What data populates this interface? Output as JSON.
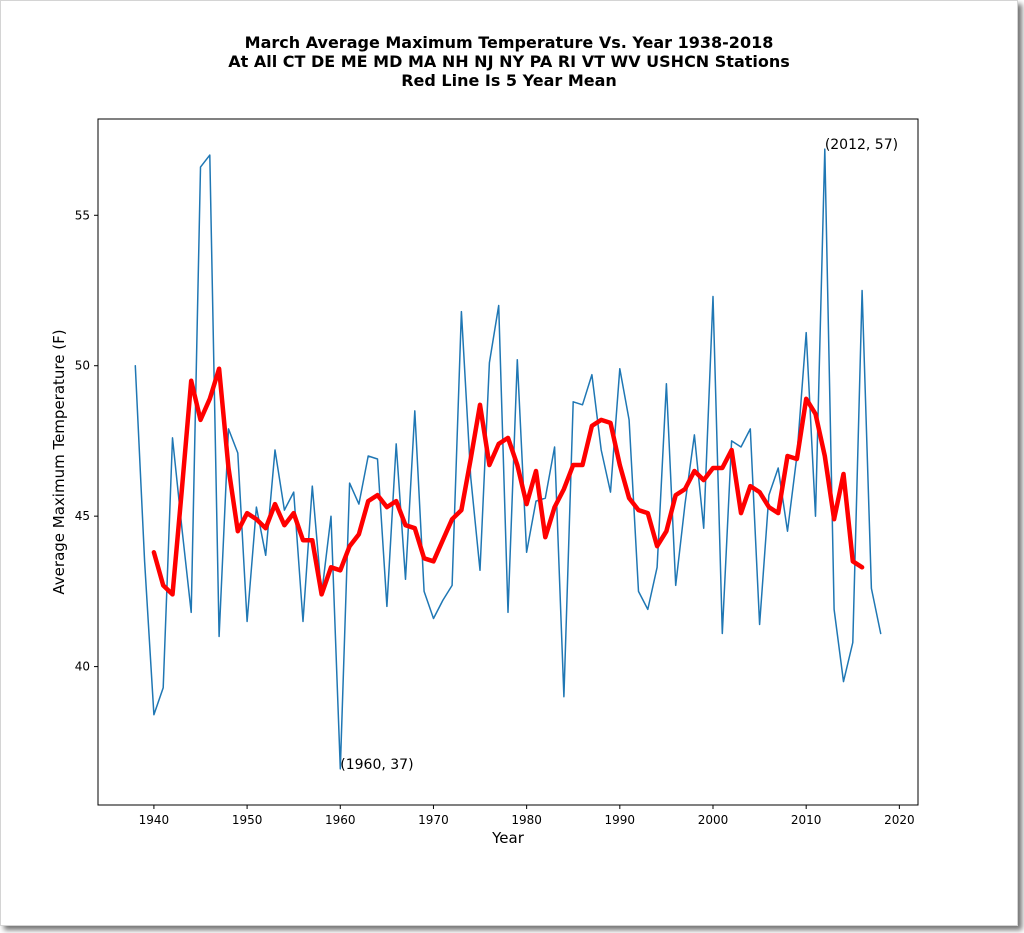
{
  "chart_data": {
    "type": "line",
    "title": [
      "March Average Maximum Temperature Vs. Year 1938-2018",
      "At All CT DE ME MD MA NH NJ NY PA RI VT WV USHCN Stations",
      "Red Line Is 5 Year Mean"
    ],
    "xlabel": "Year",
    "ylabel": "Average Maximum Temperature (F)",
    "xlim": [
      1934,
      2022
    ],
    "ylim": [
      35.4,
      58.2
    ],
    "xticks": [
      1940,
      1950,
      1960,
      1970,
      1980,
      1990,
      2000,
      2010,
      2020
    ],
    "yticks": [
      40,
      45,
      50,
      55
    ],
    "grid": false,
    "series": [
      {
        "color": "#1f77b4",
        "x": [
          1938,
          1939,
          1940,
          1941,
          1942,
          1943,
          1944,
          1945,
          1946,
          1947,
          1948,
          1949,
          1950,
          1951,
          1952,
          1953,
          1954,
          1955,
          1956,
          1957,
          1958,
          1959,
          1960,
          1961,
          1962,
          1963,
          1964,
          1965,
          1966,
          1967,
          1968,
          1969,
          1970,
          1971,
          1972,
          1973,
          1974,
          1975,
          1976,
          1977,
          1978,
          1979,
          1980,
          1981,
          1982,
          1983,
          1984,
          1985,
          1986,
          1987,
          1988,
          1989,
          1990,
          1991,
          1992,
          1993,
          1994,
          1995,
          1996,
          1997,
          1998,
          1999,
          2000,
          2001,
          2002,
          2003,
          2004,
          2005,
          2006,
          2007,
          2008,
          2009,
          2010,
          2011,
          2012,
          2013,
          2014,
          2015,
          2016,
          2017,
          2018
        ],
        "y": [
          50.0,
          43.5,
          38.4,
          39.3,
          47.6,
          44.6,
          41.8,
          56.6,
          57.0,
          41.0,
          47.9,
          47.1,
          41.5,
          45.3,
          43.7,
          47.2,
          45.2,
          45.8,
          41.5,
          46.0,
          42.4,
          45.0,
          36.6,
          46.1,
          45.4,
          47.0,
          46.9,
          42.0,
          47.4,
          42.9,
          48.5,
          42.5,
          41.6,
          42.2,
          42.7,
          51.8,
          46.3,
          43.2,
          50.1,
          52.0,
          41.8,
          50.2,
          43.8,
          45.5,
          45.6,
          47.3,
          39.0,
          48.8,
          48.7,
          49.7,
          47.2,
          45.8,
          49.9,
          48.2,
          42.5,
          41.9,
          43.3,
          49.4,
          42.7,
          45.4,
          47.7,
          44.6,
          52.3,
          41.1,
          47.5,
          47.3,
          47.9,
          41.4,
          45.7,
          46.6,
          44.5,
          47.0,
          51.1,
          45.0,
          57.2,
          41.9,
          39.5,
          40.8,
          52.5,
          42.6,
          41.1
        ]
      },
      {
        "color": "#ff0000",
        "x": [
          1940,
          1941,
          1942,
          1943,
          1944,
          1945,
          1946,
          1947,
          1948,
          1949,
          1950,
          1951,
          1952,
          1953,
          1954,
          1955,
          1956,
          1957,
          1958,
          1959,
          1960,
          1961,
          1962,
          1963,
          1964,
          1965,
          1966,
          1967,
          1968,
          1969,
          1970,
          1971,
          1972,
          1973,
          1974,
          1975,
          1976,
          1977,
          1978,
          1979,
          1980,
          1981,
          1982,
          1983,
          1984,
          1985,
          1986,
          1987,
          1988,
          1989,
          1990,
          1991,
          1992,
          1993,
          1994,
          1995,
          1996,
          1997,
          1998,
          1999,
          2000,
          2001,
          2002,
          2003,
          2004,
          2005,
          2006,
          2007,
          2008,
          2009,
          2010,
          2011,
          2012,
          2013,
          2014,
          2015,
          2016
        ],
        "y": [
          43.8,
          42.7,
          42.4,
          45.9,
          49.5,
          48.2,
          48.9,
          49.9,
          46.6,
          44.5,
          45.1,
          44.9,
          44.6,
          45.4,
          44.7,
          45.1,
          44.2,
          44.2,
          42.4,
          43.3,
          43.2,
          44.0,
          44.4,
          45.5,
          45.7,
          45.3,
          45.5,
          44.7,
          44.6,
          43.6,
          43.5,
          44.2,
          44.9,
          45.2,
          46.9,
          48.7,
          46.7,
          47.4,
          47.6,
          46.7,
          45.4,
          46.5,
          44.3,
          45.3,
          45.9,
          46.7,
          46.7,
          48.0,
          48.2,
          48.1,
          46.7,
          45.6,
          45.2,
          45.1,
          44.0,
          44.5,
          45.7,
          45.9,
          46.5,
          46.2,
          46.6,
          46.6,
          47.2,
          45.1,
          46.0,
          45.8,
          45.3,
          45.1,
          47.0,
          46.9,
          48.9,
          48.4,
          47.0,
          44.9,
          46.4,
          43.5,
          43.3
        ]
      }
    ],
    "annotations": [
      {
        "text": "(2012, 57)",
        "x": 2012,
        "y": 57.2
      },
      {
        "text": "(1960, 37)",
        "x": 1960,
        "y": 36.6
      }
    ]
  }
}
